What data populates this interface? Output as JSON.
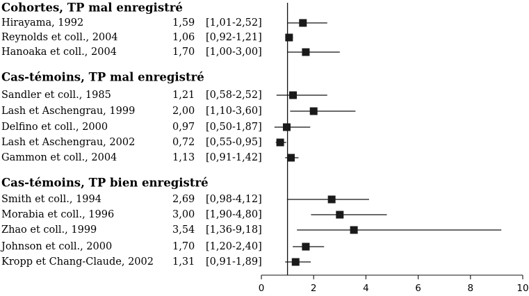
{
  "chart_data": {
    "type": "forest",
    "x_axis": {
      "ticks": [
        "0",
        "2",
        "4",
        "6",
        "8",
        "10"
      ],
      "tick_values": [
        0,
        2,
        4,
        6,
        8,
        10
      ],
      "xlim": [
        0,
        10
      ],
      "reference_line": 1
    },
    "groups": [
      {
        "title": "Cohortes, TP mal enregistré",
        "studies": [
          {
            "label": "Hirayama, 1992",
            "value_text": "1,59",
            "ci_text": "[1,01-2,52]",
            "estimate": 1.59,
            "lower": 1.01,
            "upper": 2.52
          },
          {
            "label": "Reynolds et coll., 2004",
            "value_text": "1,06",
            "ci_text": "[0,92-1,21]",
            "estimate": 1.06,
            "lower": 0.92,
            "upper": 1.21
          },
          {
            "label": "Hanoaka et coll., 2004",
            "value_text": "1,70",
            "ci_text": "[1,00-3,00]",
            "estimate": 1.7,
            "lower": 1.0,
            "upper": 3.0
          }
        ]
      },
      {
        "title": "Cas-témoins, TP mal enregistré",
        "studies": [
          {
            "label": "Sandler et coll., 1985",
            "value_text": "1,21",
            "ci_text": "[0,58-2,52]",
            "estimate": 1.21,
            "lower": 0.58,
            "upper": 2.52
          },
          {
            "label": "Lash et Aschengrau, 1999",
            "value_text": "2,00",
            "ci_text": "[1,10-3,60]",
            "estimate": 2.0,
            "lower": 1.1,
            "upper": 3.6
          },
          {
            "label": "Delfino et coll., 2000",
            "value_text": "0,97",
            "ci_text": "[0,50-1,87]",
            "estimate": 0.97,
            "lower": 0.5,
            "upper": 1.87
          },
          {
            "label": "Lash et Aschengrau, 2002",
            "value_text": "0,72",
            "ci_text": "[0,55-0,95]",
            "estimate": 0.72,
            "lower": 0.55,
            "upper": 0.95
          },
          {
            "label": "Gammon et coll., 2004",
            "value_text": "1,13",
            "ci_text": "[0,91-1,42]",
            "estimate": 1.13,
            "lower": 0.91,
            "upper": 1.42
          }
        ]
      },
      {
        "title": "Cas-témoins, TP bien enregistré",
        "studies": [
          {
            "label": "Smith et coll., 1994",
            "value_text": "2,69",
            "ci_text": "[0,98-4,12]",
            "estimate": 2.69,
            "lower": 0.98,
            "upper": 4.12
          },
          {
            "label": "Morabia et coll., 1996",
            "value_text": "3,00",
            "ci_text": "[1,90-4,80]",
            "estimate": 3.0,
            "lower": 1.9,
            "upper": 4.8
          },
          {
            "label": "Zhao et coll., 1999",
            "value_text": "3,54",
            "ci_text": "[1,36-9,18]",
            "estimate": 3.54,
            "lower": 1.36,
            "upper": 9.18
          },
          {
            "label": "Johnson et coll., 2000",
            "value_text": "1,70",
            "ci_text": "[1,20-2,40]",
            "estimate": 1.7,
            "lower": 1.2,
            "upper": 2.4
          },
          {
            "label": "Kropp et Chang-Claude, 2002",
            "value_text": "1,31",
            "ci_text": "[0,91-1,89]",
            "estimate": 1.31,
            "lower": 0.91,
            "upper": 1.89
          }
        ]
      }
    ]
  }
}
